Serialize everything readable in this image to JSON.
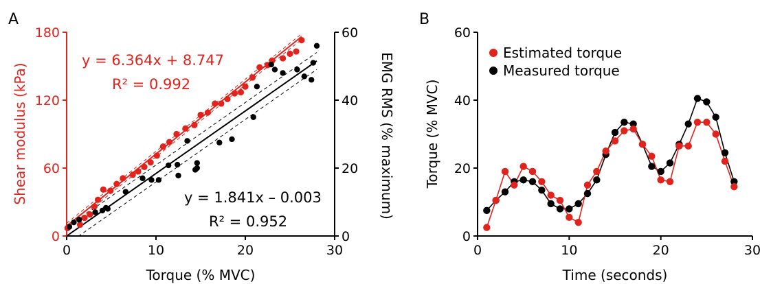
{
  "chart_data": [
    {
      "panel_label": "A",
      "type": "scatter",
      "xlabel": "Torque (% MVC)",
      "ylabel_left": "Shear modulus (kPa)",
      "ylabel_right": "EMG RMS (% maximum)",
      "xlim": [
        0,
        30
      ],
      "ylim_left": [
        0,
        180
      ],
      "ylim_right": [
        0,
        60
      ],
      "xticks": [
        "0",
        "10",
        "20",
        "30"
      ],
      "yticks_left": [
        "0",
        "60",
        "120",
        "180"
      ],
      "yticks_right": [
        "0",
        "20",
        "40",
        "60"
      ],
      "colors": {
        "shear": "#e0231c",
        "emg": "#000000"
      },
      "series": [
        {
          "axis": "left",
          "color": "#e0231c",
          "x": [
            0.1,
            1.5,
            2.0,
            2.6,
            3.1,
            3.5,
            4.1,
            4.9,
            5.6,
            6.3,
            7.4,
            8.0,
            8.7,
            9.4,
            10.1,
            10.8,
            11.5,
            12.3,
            13.3,
            14.3,
            15.0,
            15.8,
            16.6,
            17.3,
            18.0,
            18.8,
            19.5,
            20.0,
            20.8,
            21.6,
            22.5,
            23.0,
            24.2,
            25.0,
            25.7,
            26.3
          ],
          "y": [
            7,
            10,
            16,
            19,
            26,
            32,
            41,
            40,
            46,
            51,
            54,
            57,
            61,
            65,
            71,
            79,
            83,
            90,
            95,
            98,
            107,
            109,
            117,
            117,
            121,
            126,
            127,
            132,
            140,
            149,
            151,
            155,
            157,
            161,
            163,
            173
          ]
        },
        {
          "axis": "right",
          "color": "#000000",
          "x": [
            0.3,
            0.8,
            1.4,
            3.2,
            4.0,
            4.4,
            4.6,
            6.6,
            8.5,
            9.5,
            10.3,
            11.4,
            12.4,
            12.5,
            13.5,
            14.4,
            14.6,
            14.6,
            17.1,
            18.5,
            20.9,
            21.3,
            22.9,
            23.3,
            24.2,
            25.8,
            26.6,
            27.4,
            27.6,
            28.0
          ],
          "y": [
            2.7,
            4.0,
            4.8,
            7.0,
            7.5,
            8.3,
            8.0,
            13.0,
            17.0,
            16.5,
            16.5,
            20.8,
            21.0,
            17.8,
            28.0,
            19.5,
            21.5,
            20.0,
            27.5,
            28.5,
            35.0,
            44.0,
            50.5,
            49.0,
            48.0,
            49.0,
            47.0,
            46.0,
            51.0,
            56.0
          ]
        }
      ],
      "fits": [
        {
          "axis": "left",
          "color": "#e0231c",
          "slope": 6.364,
          "intercept": 8.747,
          "equation": "y = 6.364x + 8.747",
          "r2": "R² = 0.992"
        },
        {
          "axis": "right",
          "color": "#000000",
          "slope": 1.841,
          "intercept": -0.003,
          "equation": "y = 1.841x – 0.003",
          "r2": "R² = 0.952"
        }
      ]
    },
    {
      "panel_label": "B",
      "type": "line",
      "xlabel": "Time (seconds)",
      "ylabel": "Torque (% MVC)",
      "xlim": [
        0,
        30
      ],
      "ylim": [
        0,
        60
      ],
      "xticks": [
        "0",
        "10",
        "20",
        "30"
      ],
      "yticks": [
        "0",
        "20",
        "40",
        "60"
      ],
      "legend_position": "top-left",
      "x": [
        1,
        2,
        3,
        4,
        5,
        6,
        7,
        8,
        9,
        10,
        11,
        12,
        13,
        14,
        15,
        16,
        17,
        18,
        19,
        20,
        21,
        22,
        23,
        24,
        25,
        26,
        27,
        28
      ],
      "series": [
        {
          "name": "Estimated torque",
          "color": "#e0231c",
          "values": [
            2.5,
            10.5,
            19,
            15,
            20.5,
            19,
            16,
            12,
            10.5,
            5.5,
            4,
            15,
            19,
            25,
            28,
            31,
            31.5,
            27,
            23.5,
            16.5,
            16,
            26.5,
            26.5,
            33.5,
            33.5,
            30,
            22,
            14.5
          ]
        },
        {
          "name": "Measured torque",
          "color": "#000000",
          "values": [
            7.5,
            10.5,
            13,
            16,
            16.5,
            16,
            13.5,
            9.5,
            8,
            8,
            9.5,
            12.5,
            16.5,
            24,
            30.5,
            33.5,
            33,
            27,
            20.5,
            19,
            21.5,
            27,
            33,
            40.5,
            39.5,
            35,
            24.5,
            16
          ]
        }
      ]
    }
  ]
}
